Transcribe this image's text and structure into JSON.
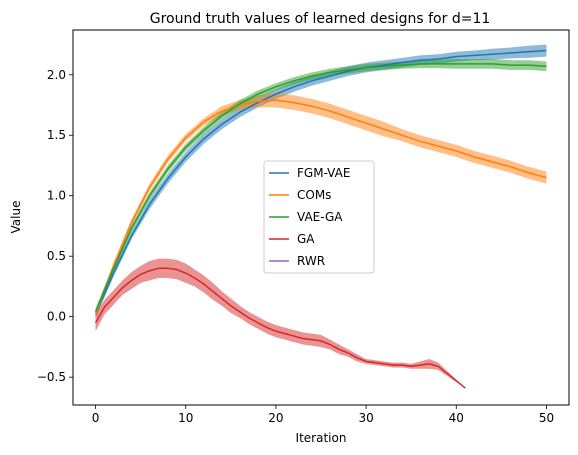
{
  "chart_data": {
    "type": "line",
    "title": "Ground truth values of learned designs for d=11",
    "xlabel": "Iteration",
    "ylabel": "Value",
    "xlim": [
      -2.5,
      52.5
    ],
    "ylim": [
      -0.73,
      2.37
    ],
    "xticks": [
      0,
      10,
      20,
      30,
      40,
      50
    ],
    "xtick_labels": [
      "0",
      "10",
      "20",
      "30",
      "40",
      "50"
    ],
    "yticks": [
      -0.5,
      0.0,
      0.5,
      1.0,
      1.5,
      2.0
    ],
    "ytick_labels": [
      "−0.5",
      "0.0",
      "0.5",
      "1.0",
      "1.5",
      "2.0"
    ],
    "grid": false,
    "legend_position": "center",
    "series": [
      {
        "name": "FGM-VAE",
        "color": "#1f77b4",
        "x": [
          0,
          2,
          4,
          6,
          8,
          10,
          12,
          14,
          16,
          18,
          20,
          22,
          24,
          26,
          28,
          30,
          32,
          34,
          36,
          38,
          40,
          42,
          44,
          46,
          48,
          50
        ],
        "y": [
          0.02,
          0.36,
          0.67,
          0.93,
          1.14,
          1.32,
          1.47,
          1.59,
          1.69,
          1.77,
          1.84,
          1.9,
          1.95,
          1.99,
          2.03,
          2.06,
          2.08,
          2.1,
          2.12,
          2.13,
          2.15,
          2.16,
          2.17,
          2.18,
          2.19,
          2.2
        ],
        "band": [
          0.03,
          0.03,
          0.03,
          0.04,
          0.04,
          0.04,
          0.04,
          0.04,
          0.04,
          0.04,
          0.04,
          0.04,
          0.04,
          0.04,
          0.04,
          0.04,
          0.04,
          0.04,
          0.04,
          0.04,
          0.04,
          0.04,
          0.045,
          0.045,
          0.05,
          0.05
        ]
      },
      {
        "name": "COMs",
        "color": "#ff7f0e",
        "x": [
          0,
          2,
          4,
          6,
          8,
          10,
          12,
          14,
          16,
          18,
          20,
          22,
          24,
          26,
          28,
          30,
          32,
          34,
          36,
          38,
          40,
          42,
          44,
          46,
          48,
          50
        ],
        "y": [
          0.02,
          0.42,
          0.78,
          1.07,
          1.3,
          1.48,
          1.61,
          1.7,
          1.75,
          1.78,
          1.79,
          1.77,
          1.74,
          1.7,
          1.65,
          1.6,
          1.55,
          1.5,
          1.45,
          1.41,
          1.37,
          1.32,
          1.28,
          1.24,
          1.19,
          1.15
        ],
        "band": [
          0.03,
          0.03,
          0.03,
          0.03,
          0.03,
          0.03,
          0.03,
          0.04,
          0.04,
          0.05,
          0.06,
          0.06,
          0.06,
          0.06,
          0.06,
          0.06,
          0.06,
          0.05,
          0.05,
          0.05,
          0.05,
          0.05,
          0.05,
          0.05,
          0.05,
          0.05
        ]
      },
      {
        "name": "VAE-GA",
        "color": "#2ca02c",
        "x": [
          0,
          2,
          4,
          6,
          8,
          10,
          12,
          14,
          16,
          18,
          20,
          22,
          24,
          26,
          28,
          30,
          32,
          34,
          36,
          38,
          40,
          42,
          44,
          46,
          48,
          50
        ],
        "y": [
          0.04,
          0.4,
          0.73,
          1.0,
          1.22,
          1.4,
          1.54,
          1.66,
          1.76,
          1.84,
          1.9,
          1.95,
          1.99,
          2.02,
          2.04,
          2.06,
          2.07,
          2.08,
          2.09,
          2.09,
          2.09,
          2.09,
          2.09,
          2.08,
          2.08,
          2.07
        ],
        "band": [
          0.03,
          0.03,
          0.03,
          0.03,
          0.03,
          0.03,
          0.03,
          0.03,
          0.03,
          0.03,
          0.03,
          0.03,
          0.03,
          0.03,
          0.03,
          0.03,
          0.03,
          0.03,
          0.035,
          0.035,
          0.04,
          0.04,
          0.04,
          0.04,
          0.04,
          0.04
        ]
      },
      {
        "name": "GA",
        "color": "#d62728",
        "x": [
          0,
          1,
          2,
          3,
          4,
          5,
          6,
          7,
          8,
          9,
          10,
          11,
          12,
          13,
          14,
          15,
          16,
          17,
          18,
          19,
          20,
          21,
          22,
          23,
          24,
          25,
          26,
          27,
          28,
          29,
          30,
          31,
          32,
          33,
          34,
          35,
          36,
          37,
          38,
          39,
          40,
          41
        ],
        "y": [
          -0.05,
          0.08,
          0.16,
          0.24,
          0.3,
          0.35,
          0.38,
          0.4,
          0.4,
          0.39,
          0.36,
          0.32,
          0.27,
          0.21,
          0.15,
          0.09,
          0.04,
          -0.01,
          -0.05,
          -0.09,
          -0.12,
          -0.14,
          -0.16,
          -0.18,
          -0.19,
          -0.2,
          -0.23,
          -0.27,
          -0.3,
          -0.34,
          -0.37,
          -0.38,
          -0.39,
          -0.4,
          -0.4,
          -0.41,
          -0.4,
          -0.39,
          -0.41,
          -0.47,
          -0.53,
          -0.59
        ],
        "band": [
          0.07,
          0.06,
          0.06,
          0.06,
          0.07,
          0.07,
          0.08,
          0.08,
          0.08,
          0.08,
          0.08,
          0.07,
          0.07,
          0.07,
          0.06,
          0.06,
          0.05,
          0.05,
          0.05,
          0.05,
          0.05,
          0.05,
          0.05,
          0.05,
          0.05,
          0.05,
          0.04,
          0.04,
          0.03,
          0.03,
          0.02,
          0.02,
          0.02,
          0.02,
          0.02,
          0.02,
          0.03,
          0.04,
          0.03,
          0.02,
          0.01,
          0.0
        ]
      },
      {
        "name": "RWR",
        "color": "#9467bd",
        "x": [],
        "y": [],
        "band": []
      }
    ]
  }
}
